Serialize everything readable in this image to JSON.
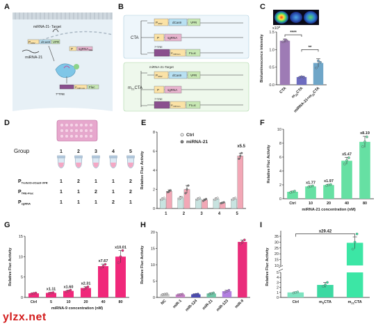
{
  "panel_letters": [
    "A",
    "B",
    "C",
    "D",
    "E",
    "F",
    "G",
    "H",
    "I"
  ],
  "watermark": "ylzx.net",
  "panelA": {
    "target_label": "miRNA-21-\nTarget",
    "mirna_label": "miRNA-21",
    "p_cmv": "P",
    "p_cmv_sub": "CMV",
    "dcas9": "dCas9",
    "vpr": "VPR",
    "p_label": "P",
    "sgrna": "sgRNA",
    "sgrna_sub": "TRE",
    "tre_label": "7*TRE",
    "p_mini": "P",
    "p_mini_sub": "CMV min",
    "fluc": "Fluc"
  },
  "panelB": {
    "cta_label": "CTA",
    "mcta_label": "m",
    "mcta_sub": "21",
    "mcta_tail": "CTA",
    "p_cmv": "P",
    "p_cmv_sub": "CMV",
    "dcas9": "dCas9",
    "vpr": "VPR",
    "p": "P",
    "sgrna": "sgRNA",
    "tre": "7*TRE",
    "p_min": "P",
    "p_min_sub": "CMVmin",
    "fluc": "FLuc",
    "target": "miRNA-21-Target"
  },
  "panelD": {
    "group_label": "Group",
    "groups": [
      "1",
      "2",
      "3",
      "4",
      "5"
    ],
    "rows": [
      {
        "label": "P",
        "sub": "Tre/tetO-dCas9-VPR",
        "values": [
          "1",
          "2",
          "1",
          "1",
          "2"
        ]
      },
      {
        "label": "P",
        "sub": "TRE-Fluc",
        "values": [
          "1",
          "1",
          "2",
          "1",
          "2"
        ]
      },
      {
        "label": "P",
        "sub": "sgRNA",
        "values": [
          "1",
          "1",
          "1",
          "2",
          "1"
        ]
      }
    ]
  },
  "chart_data": [
    {
      "id": "C",
      "type": "bar",
      "categories": [
        "CTA",
        "m21CTA",
        "miRNA-21+m21CTA"
      ],
      "category_labels": [
        {
          "main": "CTA",
          "sub": "",
          "tail": ""
        },
        {
          "main": "m",
          "sub": "21",
          "tail": "CTA"
        },
        {
          "main": "miRNA-21+m",
          "sub": "21",
          "tail": "CTA"
        }
      ],
      "values": [
        1.25,
        0.22,
        0.62
      ],
      "errors": [
        0.05,
        0.02,
        0.12
      ],
      "points": [
        [
          1.22,
          1.28,
          1.25
        ],
        [
          0.21,
          0.23,
          0.22
        ],
        [
          0.48,
          0.68,
          0.64
        ]
      ],
      "colors": [
        "#9e7bb5",
        "#6d6cc0",
        "#6fa6c8"
      ],
      "ylabel": "Bioluminescence intensity",
      "exponent_label": "x10",
      "exponent_sup": "8",
      "ylim": [
        0,
        1.5
      ],
      "yticks": [
        "0.0",
        "0.5",
        "1.0",
        "1.5"
      ],
      "sig": [
        {
          "from": 0,
          "to": 1,
          "label": "****"
        },
        {
          "from": 1,
          "to": 2,
          "label": "**"
        }
      ]
    },
    {
      "id": "E",
      "type": "bar",
      "categories": [
        "1",
        "2",
        "3",
        "4",
        "5"
      ],
      "series": [
        {
          "name": "Ctrl",
          "values": [
            1.0,
            1.1,
            1.0,
            1.0,
            1.0
          ],
          "errors": [
            0.1,
            0.15,
            0.1,
            0.1,
            0.1
          ],
          "points": [
            [
              0.9,
              1.0,
              1.1
            ],
            [
              1.0,
              1.1,
              1.2
            ],
            [
              0.9,
              1.0,
              1.1
            ],
            [
              0.9,
              1.0,
              1.1
            ],
            [
              0.9,
              1.0,
              1.1
            ]
          ],
          "color": "#c8e3e0"
        },
        {
          "name": "miRNA-21",
          "values": [
            1.8,
            2.0,
            0.9,
            0.6,
            5.5
          ],
          "errors": [
            0.15,
            0.4,
            0.1,
            0.05,
            0.3
          ],
          "points": [
            [
              1.7,
              1.8,
              1.9
            ],
            [
              1.6,
              2.0,
              2.4
            ],
            [
              0.8,
              0.9,
              1.0
            ],
            [
              0.55,
              0.6,
              0.65
            ],
            [
              5.2,
              5.5,
              5.8
            ]
          ],
          "color": "#f2a7b6"
        }
      ],
      "ylabel": "Relative Fluc Activity",
      "ylim": [
        0,
        8
      ],
      "yticks": [
        "0",
        "2",
        "4",
        "6",
        "8"
      ],
      "annotation": {
        "index": 4,
        "text": "x5.5"
      }
    },
    {
      "id": "F",
      "type": "bar",
      "categories": [
        "Ctrl",
        "10",
        "20",
        "40",
        "80"
      ],
      "values": [
        1.0,
        1.77,
        1.97,
        5.47,
        8.19
      ],
      "errors": [
        0.1,
        0.1,
        0.12,
        0.5,
        0.8
      ],
      "points": [
        [
          0.9,
          1.0,
          1.1
        ],
        [
          1.7,
          1.77,
          1.85
        ],
        [
          1.9,
          1.97,
          2.05
        ],
        [
          5.0,
          5.5,
          5.9
        ],
        [
          7.5,
          8.2,
          8.9
        ]
      ],
      "color": "#66e0a3",
      "ylabel": "Relative Fluc Activity",
      "xlabel": "miRNA-21 concentration (nM)",
      "ylim": [
        0,
        10
      ],
      "yticks": [
        "0",
        "2",
        "4",
        "6",
        "8",
        "10"
      ],
      "labels": [
        "",
        "x1.77",
        "x1.97",
        "x5.47",
        "x8.19"
      ]
    },
    {
      "id": "G",
      "type": "bar",
      "categories": [
        "Ctrl",
        "5",
        "10",
        "20",
        "40",
        "80"
      ],
      "values": [
        1.0,
        1.11,
        1.6,
        2.31,
        7.67,
        10.01
      ],
      "errors": [
        0.1,
        0.15,
        0.2,
        0.3,
        0.5,
        1.5
      ],
      "points": [
        [
          0.9,
          1.0,
          1.1
        ],
        [
          1.0,
          1.1,
          1.2
        ],
        [
          1.4,
          1.6,
          1.8
        ],
        [
          2.0,
          2.3,
          2.6
        ],
        [
          7.2,
          7.7,
          8.1
        ],
        [
          8.5,
          10.0,
          11.5
        ]
      ],
      "color": "#f0287a",
      "ylabel": "Relative Fluc Activity",
      "xlabel": "miRNA-9 concentration (nM)",
      "ylim": [
        0,
        15
      ],
      "yticks": [
        "0",
        "5",
        "10",
        "15"
      ],
      "labels": [
        "",
        "x1.11",
        "x1.60",
        "x2.31",
        "x7.67",
        "x10.01"
      ]
    },
    {
      "id": "H",
      "type": "bar",
      "categories": [
        "NC",
        "miR-1",
        "miR-124",
        "miR-21",
        "miR-133",
        "miR-9"
      ],
      "values": [
        1.0,
        0.9,
        0.95,
        1.2,
        1.9,
        17.0
      ],
      "errors": [
        0.1,
        0.1,
        0.1,
        0.2,
        0.3,
        0.6
      ],
      "points": [
        [
          0.9,
          1.0,
          1.1
        ],
        [
          0.8,
          0.9,
          1.0
        ],
        [
          0.85,
          0.95,
          1.05
        ],
        [
          1.0,
          1.2,
          1.4
        ],
        [
          1.6,
          1.9,
          2.2
        ],
        [
          16.4,
          17.0,
          17.6
        ]
      ],
      "colors": [
        "#c9c9c9",
        "#c880c8",
        "#4a4ab8",
        "#6dc6a6",
        "#b27fe0",
        "#ea2d7b"
      ],
      "ylabel": "Relative Fluc Activity",
      "ylim": [
        0,
        20
      ],
      "yticks": [
        "0",
        "5",
        "10",
        "15",
        "20"
      ]
    },
    {
      "id": "I",
      "type": "bar",
      "categories": [
        "Ctrl",
        "m9CTA",
        "m21CTA"
      ],
      "category_labels": [
        {
          "main": "Ctrl",
          "sub": "",
          "tail": ""
        },
        {
          "main": "m",
          "sub": "9",
          "tail": "CTA"
        },
        {
          "main": "m",
          "sub": "21",
          "tail": "CTA"
        }
      ],
      "values": [
        1.0,
        2.5,
        29.42
      ],
      "errors": [
        0.1,
        0.5,
        5.0
      ],
      "points": [
        [
          0.9,
          1.0,
          1.1
        ],
        [
          2.2,
          2.5,
          3.0
        ],
        [
          24,
          30,
          37
        ]
      ],
      "colors": [
        "#7de3c0",
        "#3cd9a2",
        "#3ce6a5"
      ],
      "ylabel": "Relative Fluc Activity",
      "ylim": [
        0,
        40
      ],
      "yticks_low": [
        "0",
        "1",
        "2",
        "3",
        "4",
        "5"
      ],
      "yticks_high": [
        "10",
        "15",
        "20",
        "25",
        "30",
        "35"
      ],
      "bracket": {
        "from": 0,
        "to": 2,
        "label": "x29.42"
      }
    }
  ]
}
